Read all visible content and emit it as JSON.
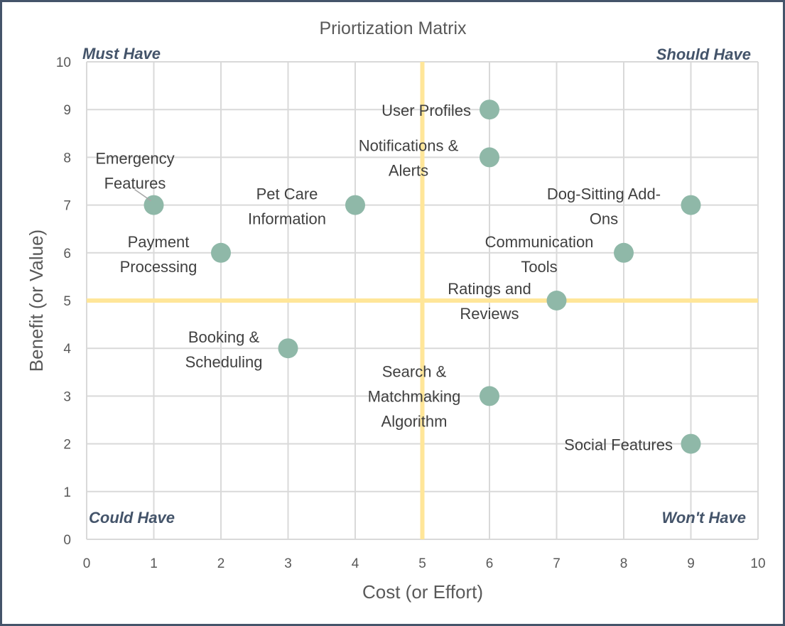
{
  "chart_data": {
    "type": "scatter",
    "title": "Priortization Matrix",
    "xlabel": "Cost (or Effort)",
    "ylabel": "Benefit (or Value)",
    "xlim": [
      0,
      10
    ],
    "ylim": [
      0,
      10
    ],
    "x_ticks": [
      "0",
      "1",
      "2",
      "3",
      "4",
      "5",
      "6",
      "7",
      "8",
      "9",
      "10"
    ],
    "y_ticks": [
      "0",
      "1",
      "2",
      "3",
      "4",
      "5",
      "6",
      "7",
      "8",
      "9",
      "10"
    ],
    "grid": true,
    "divider": {
      "x": 5,
      "y": 5,
      "color": "#ffe699"
    },
    "marker_color": "#8fb8a8",
    "quadrant_labels": {
      "top_left": "Must Have",
      "top_right": "Should Have",
      "bottom_left": "Could Have",
      "bottom_right": "Won't Have"
    },
    "points": [
      {
        "label": "User Profiles",
        "lines": [
          "User Profiles"
        ],
        "x": 6,
        "y": 9
      },
      {
        "label": "Notifications & Alerts",
        "lines": [
          "Notifications &",
          "Alerts"
        ],
        "x": 6,
        "y": 8
      },
      {
        "label": "Emergency Features",
        "lines": [
          "Emergency",
          "Features"
        ],
        "x": 1,
        "y": 7
      },
      {
        "label": "Pet Care Information",
        "lines": [
          "Pet Care",
          "Information"
        ],
        "x": 4,
        "y": 7
      },
      {
        "label": "Dog-Sitting Add-Ons",
        "lines": [
          "Dog-Sitting Add-",
          "Ons"
        ],
        "x": 9,
        "y": 7
      },
      {
        "label": "Payment Processing",
        "lines": [
          "Payment",
          "Processing"
        ],
        "x": 2,
        "y": 6
      },
      {
        "label": "Communication Tools",
        "lines": [
          "Communication",
          "Tools"
        ],
        "x": 8,
        "y": 6
      },
      {
        "label": "Ratings and Reviews",
        "lines": [
          "Ratings and",
          "Reviews"
        ],
        "x": 7,
        "y": 5
      },
      {
        "label": "Booking & Scheduling",
        "lines": [
          "Booking &",
          "Scheduling"
        ],
        "x": 3,
        "y": 4
      },
      {
        "label": "Search & Matchmaking Algorithm",
        "lines": [
          "Search &",
          "Matchmaking",
          "Algorithm"
        ],
        "x": 6,
        "y": 3
      },
      {
        "label": "Social Features",
        "lines": [
          "Social Features"
        ],
        "x": 9,
        "y": 2
      }
    ]
  }
}
